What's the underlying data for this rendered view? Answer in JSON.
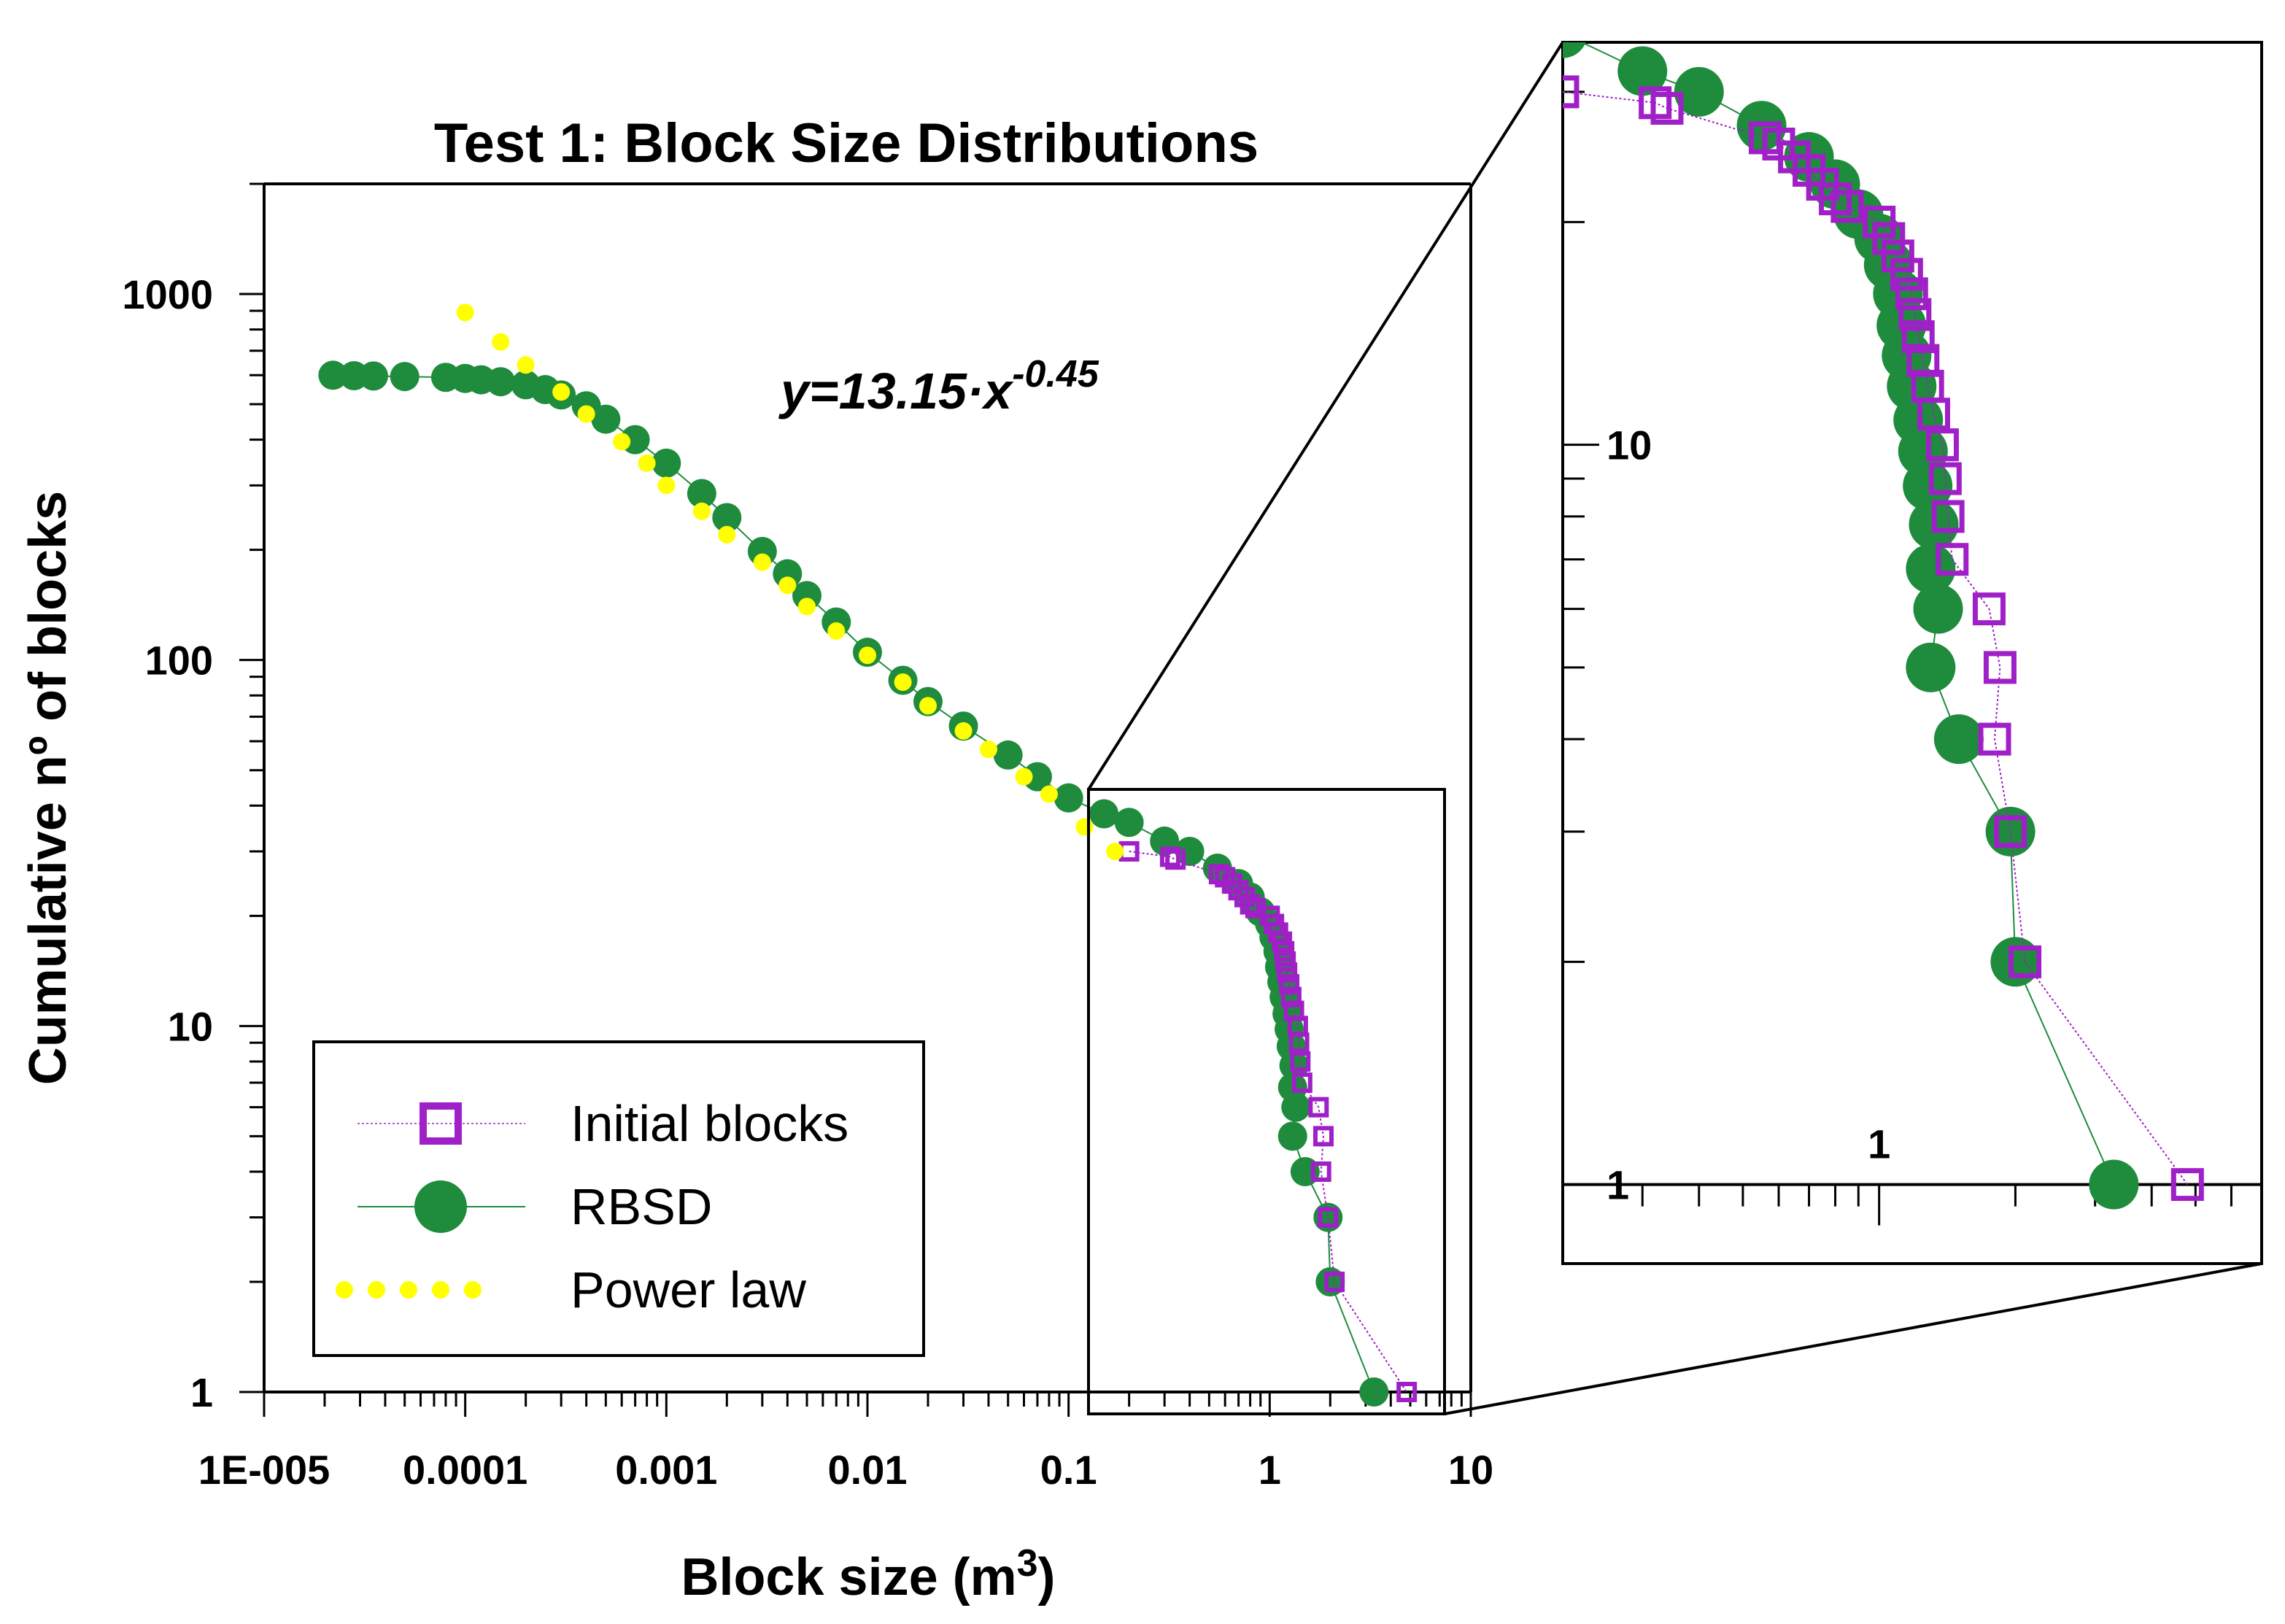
{
  "chart_data": {
    "type": "scatter",
    "title": "Test 1: Block Size Distributions",
    "xlabel": "Block size (m",
    "xlabel_sup": "3",
    "xlabel_suffix": ")",
    "ylabel": "Cumulative nº of blocks",
    "x_scale": "log",
    "y_scale": "log",
    "xlim": [
      1e-05,
      10
    ],
    "ylim": [
      1,
      2000
    ],
    "x_ticks": [
      {
        "value": 1e-05,
        "label": "1E-005"
      },
      {
        "value": 0.0001,
        "label": "0.0001"
      },
      {
        "value": 0.001,
        "label": "0.001"
      },
      {
        "value": 0.01,
        "label": "0.01"
      },
      {
        "value": 0.1,
        "label": "0.1"
      },
      {
        "value": 1,
        "label": "1"
      },
      {
        "value": 10,
        "label": "10"
      }
    ],
    "y_ticks": [
      {
        "value": 1,
        "label": "1"
      },
      {
        "value": 10,
        "label": "10"
      },
      {
        "value": 100,
        "label": "100"
      },
      {
        "value": 1000,
        "label": "1000"
      }
    ],
    "annotation": {
      "text": "y=13.15·x",
      "sup": "-0.45"
    },
    "legend": {
      "placement": "bottom-left",
      "entries": [
        "Initial blocks",
        "RBSD",
        "Power law"
      ]
    },
    "series": [
      {
        "name": "Initial blocks",
        "color": "#a020c8",
        "marker": "square-open",
        "points": [
          [
            0.2,
            30
          ],
          [
            0.32,
            29
          ],
          [
            0.34,
            28.5
          ],
          [
            0.56,
            26
          ],
          [
            0.6,
            25.5
          ],
          [
            0.65,
            24.5
          ],
          [
            0.7,
            23.5
          ],
          [
            0.75,
            22.5
          ],
          [
            0.8,
            21.5
          ],
          [
            0.85,
            21
          ],
          [
            1.0,
            20
          ],
          [
            1.05,
            19
          ],
          [
            1.1,
            18
          ],
          [
            1.15,
            17
          ],
          [
            1.18,
            16
          ],
          [
            1.2,
            15
          ],
          [
            1.22,
            14
          ],
          [
            1.25,
            13
          ],
          [
            1.28,
            12
          ],
          [
            1.32,
            11
          ],
          [
            1.38,
            10
          ],
          [
            1.4,
            9
          ],
          [
            1.42,
            8
          ],
          [
            1.45,
            7
          ],
          [
            1.75,
            6
          ],
          [
            1.85,
            5
          ],
          [
            1.8,
            4
          ],
          [
            1.95,
            3
          ],
          [
            2.1,
            2
          ],
          [
            4.8,
            1
          ]
        ]
      },
      {
        "name": "RBSD",
        "color": "#1e8c3c",
        "marker": "circle",
        "points": [
          [
            2.2e-05,
            600
          ],
          [
            2.8e-05,
            598
          ],
          [
            3.5e-05,
            597
          ],
          [
            5e-05,
            595
          ],
          [
            8e-05,
            592
          ],
          [
            0.0001,
            588
          ],
          [
            0.00012,
            583
          ],
          [
            0.00015,
            576
          ],
          [
            0.0002,
            565
          ],
          [
            0.00025,
            548
          ],
          [
            0.0003,
            530
          ],
          [
            0.0004,
            495
          ],
          [
            0.0005,
            455
          ],
          [
            0.0007,
            400
          ],
          [
            0.001,
            345
          ],
          [
            0.0015,
            285
          ],
          [
            0.002,
            245
          ],
          [
            0.003,
            198
          ],
          [
            0.004,
            172
          ],
          [
            0.005,
            150
          ],
          [
            0.007,
            127
          ],
          [
            0.01,
            105
          ],
          [
            0.015,
            88
          ],
          [
            0.02,
            77
          ],
          [
            0.03,
            66
          ],
          [
            0.05,
            55
          ],
          [
            0.07,
            48
          ],
          [
            0.1,
            42
          ],
          [
            0.15,
            38
          ],
          [
            0.2,
            36
          ],
          [
            0.3,
            32
          ],
          [
            0.4,
            30
          ],
          [
            0.55,
            27
          ],
          [
            0.7,
            24.5
          ],
          [
            0.8,
            22.5
          ],
          [
            0.9,
            20.5
          ],
          [
            1.0,
            19
          ],
          [
            1.05,
            17.5
          ],
          [
            1.1,
            16
          ],
          [
            1.12,
            14.5
          ],
          [
            1.15,
            13.2
          ],
          [
            1.18,
            12
          ],
          [
            1.22,
            10.8
          ],
          [
            1.25,
            9.8
          ],
          [
            1.28,
            8.8
          ],
          [
            1.32,
            7.8
          ],
          [
            1.3,
            6.8
          ],
          [
            1.35,
            6
          ],
          [
            1.3,
            5
          ],
          [
            1.5,
            4
          ],
          [
            1.95,
            3
          ],
          [
            2.0,
            2
          ],
          [
            3.3,
            1
          ]
        ]
      },
      {
        "name": "Power law",
        "color": "#ffff00",
        "marker": "dot",
        "points": [
          [
            0.0001,
            890
          ],
          [
            0.00015,
            740
          ],
          [
            0.0002,
            640
          ],
          [
            0.0003,
            540
          ],
          [
            0.0004,
            470
          ],
          [
            0.0006,
            395
          ],
          [
            0.0008,
            345
          ],
          [
            0.001,
            300
          ],
          [
            0.0015,
            255
          ],
          [
            0.002,
            220
          ],
          [
            0.003,
            185
          ],
          [
            0.004,
            160
          ],
          [
            0.005,
            140
          ],
          [
            0.007,
            120
          ],
          [
            0.01,
            103
          ],
          [
            0.015,
            87
          ],
          [
            0.02,
            75
          ],
          [
            0.03,
            64
          ],
          [
            0.04,
            57
          ],
          [
            0.06,
            48
          ],
          [
            0.08,
            43
          ],
          [
            0.12,
            35
          ],
          [
            0.17,
            30
          ]
        ]
      }
    ],
    "inset": {
      "xlim": [
        0.2,
        7
      ],
      "ylim": [
        0.9,
        35
      ],
      "x_ticks": [
        {
          "value": 1,
          "label": "1"
        }
      ],
      "y_ticks": [
        {
          "value": 1,
          "label": "1"
        },
        {
          "value": 10,
          "label": "10"
        }
      ]
    }
  }
}
